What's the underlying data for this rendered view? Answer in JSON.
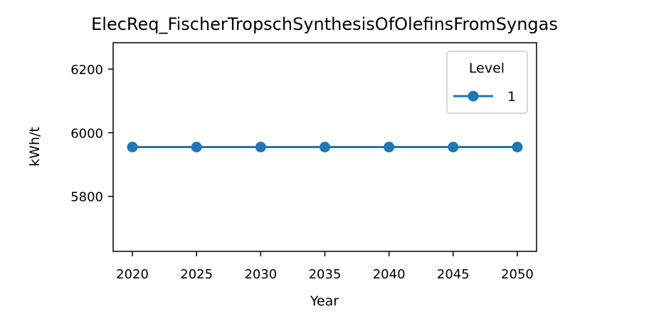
{
  "chart_data": {
    "type": "line",
    "title": "ElecReq_FischerTropschSynthesisOfOlefinsFromSyngas",
    "xlabel": "Year",
    "ylabel": "kWh/t",
    "x": [
      2020,
      2025,
      2030,
      2035,
      2040,
      2045,
      2050
    ],
    "series": [
      {
        "name": "1",
        "values": [
          5955,
          5955,
          5955,
          5955,
          5955,
          5955,
          5955
        ],
        "color": "#1f77b4"
      }
    ],
    "xlim": [
      2018.5,
      2051.5
    ],
    "ylim": [
      5627,
      6283
    ],
    "xticks": [
      2020,
      2025,
      2030,
      2035,
      2040,
      2045,
      2050
    ],
    "yticks": [
      5800,
      6000,
      6200
    ],
    "grid": false,
    "legend": {
      "title": "Level",
      "placement": "top-right"
    }
  }
}
